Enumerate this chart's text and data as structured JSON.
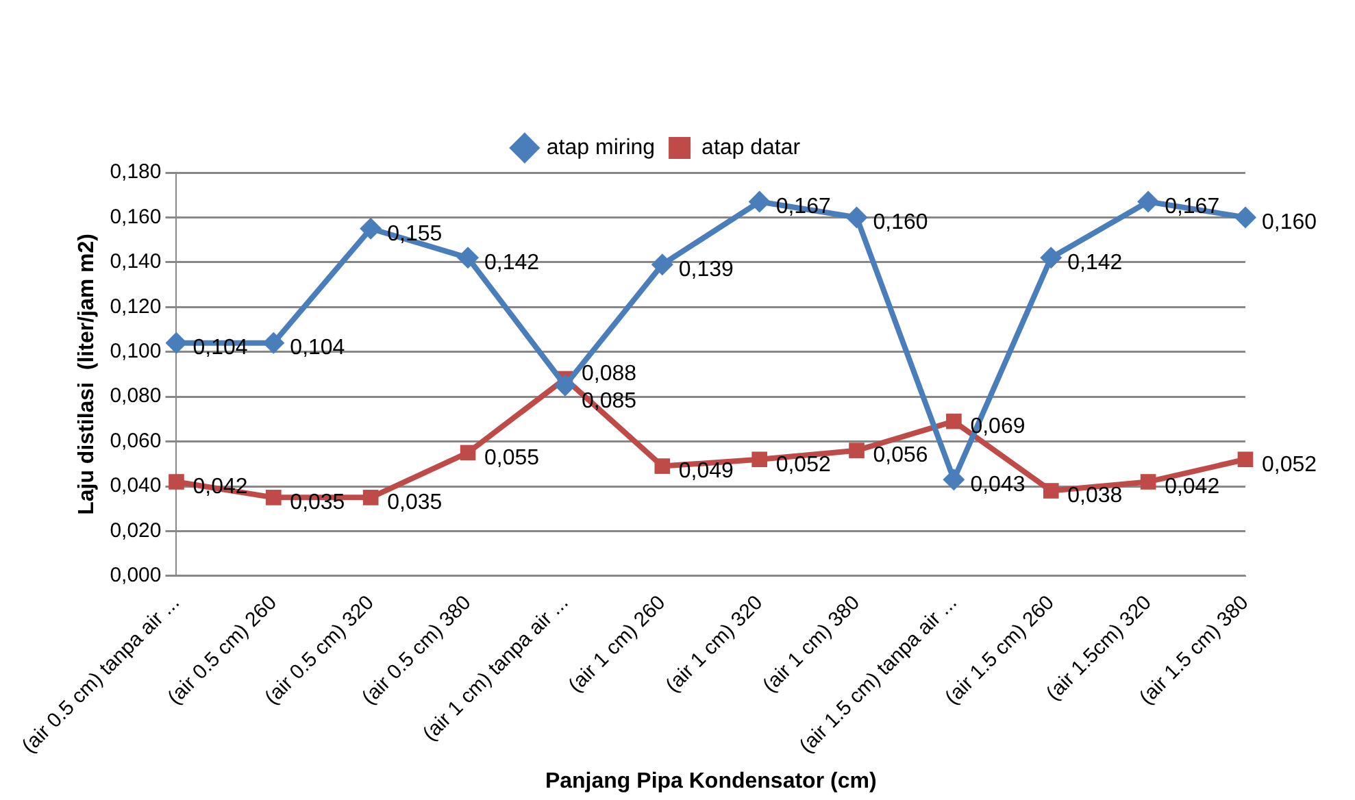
{
  "chart_data": {
    "type": "line",
    "xlabel": "Panjang Pipa Kondensator (cm)",
    "ylabel": "Laju distilasi  (liter/jam m2)",
    "categories": [
      "(air 0.5 cm) tanpa air ...",
      "(air 0.5 cm) 260",
      "(air 0.5 cm) 320",
      "(air 0.5 cm) 380",
      "(air 1 cm) tanpa air ...",
      "(air 1 cm) 260",
      "(air 1 cm) 320",
      "(air 1 cm) 380",
      "(air 1.5 cm) tanpa air ...",
      "(air 1.5 cm) 260",
      "(air 1.5cm) 320",
      "(air 1.5 cm) 380"
    ],
    "series": [
      {
        "name": "atap miring",
        "color": "#4a7ebb",
        "marker": "diamond",
        "values": [
          0.104,
          0.104,
          0.155,
          0.142,
          0.085,
          0.139,
          0.167,
          0.16,
          0.043,
          0.142,
          0.167,
          0.16
        ],
        "value_labels": [
          "0,104",
          "0,104",
          "0,155",
          "0,142",
          "0,085",
          "0,139",
          "0,167",
          "0,160",
          "0,043",
          "0,142",
          "0,167",
          "0,160"
        ]
      },
      {
        "name": "atap datar",
        "color": "#be4b48",
        "marker": "square",
        "values": [
          0.042,
          0.035,
          0.035,
          0.055,
          0.088,
          0.049,
          0.052,
          0.056,
          0.069,
          0.038,
          0.042,
          0.052
        ],
        "value_labels": [
          "0,042",
          "0,035",
          "0,035",
          "0,055",
          "0,088",
          "0,049",
          "0,052",
          "0,056",
          "0,069",
          "0,038",
          "0,042",
          "0,052"
        ]
      }
    ],
    "ylim": [
      0,
      0.18
    ],
    "yticks": [
      {
        "value": 0,
        "label": "0,000"
      },
      {
        "value": 0.02,
        "label": "0,020"
      },
      {
        "value": 0.04,
        "label": "0,040"
      },
      {
        "value": 0.06,
        "label": "0,060"
      },
      {
        "value": 0.08,
        "label": "0,080"
      },
      {
        "value": 0.1,
        "label": "0,100"
      },
      {
        "value": 0.12,
        "label": "0,120"
      },
      {
        "value": 0.14,
        "label": "0,140"
      },
      {
        "value": 0.16,
        "label": "0,160"
      },
      {
        "value": 0.18,
        "label": "0,180"
      }
    ],
    "grid": "y",
    "legend": "top"
  }
}
